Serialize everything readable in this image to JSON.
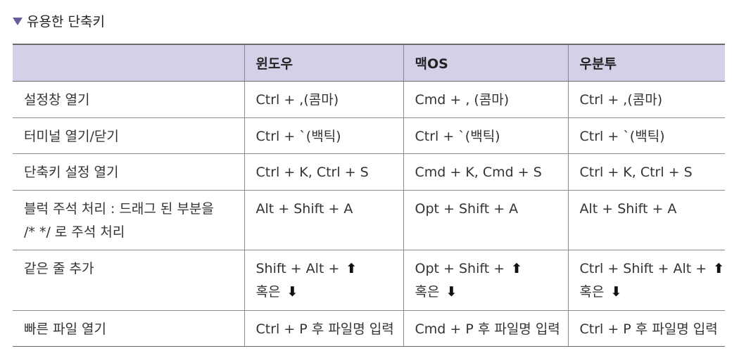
{
  "heading": {
    "icon": "triangle-down-icon",
    "text": "유용한 단축키",
    "icon_color": "#6a5a9e"
  },
  "table": {
    "header_bg": "#d5d0e8",
    "columns": [
      "",
      "윈도우",
      "맥OS",
      "우분투"
    ],
    "rows": [
      {
        "action": "설정창 열기",
        "windows": "Ctrl + ,(콤마)",
        "mac": "Cmd + , (콤마)",
        "ubuntu": "Ctrl + ,(콤마)"
      },
      {
        "action": "터미널 열기/닫기",
        "windows": "Ctrl + `(백틱)",
        "mac": "Ctrl + `(백틱)",
        "ubuntu": "Ctrl + `(백틱)"
      },
      {
        "action": "단축키 설정 열기",
        "windows": "Ctrl + K, Ctrl + S",
        "mac": "Cmd + K, Cmd + S",
        "ubuntu": "Ctrl + K, Ctrl + S"
      },
      {
        "action_line1": "블럭 주석 처리 : 드래그 된 부분을",
        "action_line2": "/* */ 로 주석 처리",
        "windows": "Alt + Shift + A",
        "mac": "Opt + Shift + A",
        "ubuntu": "Alt + Shift + A"
      },
      {
        "action": "같은 줄 추가",
        "windows": "Shift + Alt +",
        "mac": "Opt + Shift +",
        "ubuntu": "Ctrl + Shift + Alt +",
        "or_text": "혹은",
        "up_arrow": "⬆",
        "down_arrow": "⬇"
      },
      {
        "action": "빠른 파일 열기",
        "windows": "Ctrl + P 후 파일명 입력",
        "mac": "Cmd + P 후 파일명 입력",
        "ubuntu": "Ctrl + P 후 파일명 입력"
      }
    ]
  }
}
